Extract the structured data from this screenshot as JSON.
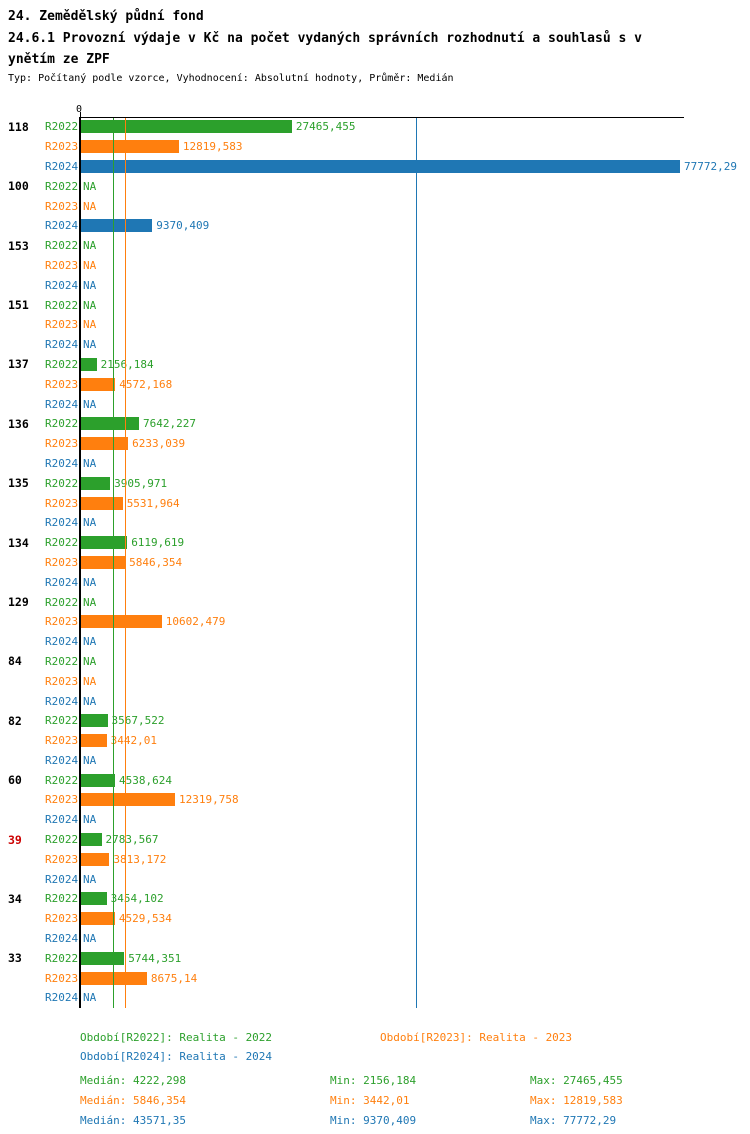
{
  "header": {
    "title": "24. Zemědělský půdní fond",
    "subtitle_lines": [
      "24.6.1 Provozní výdaje v Kč na počet vydaných správních rozhodnutí a souhlasů s v",
      "ynětím ze ZPF"
    ],
    "meta": "Typ: Počítaný podle vzorce, Vyhodnocení: Absolutní hodnoty, Průměr: Medián"
  },
  "colors": {
    "r2022": "#2ca02c",
    "r2023": "#ff7f0e",
    "r2024": "#1f77b4",
    "axis": "#000000",
    "highlight_label": "#cc0000"
  },
  "chart_data": {
    "type": "bar",
    "orientation": "horizontal",
    "axis_zero_label": "0",
    "xlim": [
      0,
      77772.29
    ],
    "series": [
      "R2022",
      "R2023",
      "R2024"
    ],
    "medians": {
      "R2022": 4222.298,
      "R2023": 5846.354,
      "R2024": 43571.35
    },
    "groups": [
      {
        "label": "118",
        "highlight": false,
        "values": [
          "27465,455",
          "12819,583",
          "77772,29"
        ]
      },
      {
        "label": "100",
        "highlight": false,
        "values": [
          "NA",
          "NA",
          "9370,409"
        ]
      },
      {
        "label": "153",
        "highlight": false,
        "values": [
          "NA",
          "NA",
          "NA"
        ]
      },
      {
        "label": "151",
        "highlight": false,
        "values": [
          "NA",
          "NA",
          "NA"
        ]
      },
      {
        "label": "137",
        "highlight": false,
        "values": [
          "2156,184",
          "4572,168",
          "NA"
        ]
      },
      {
        "label": "136",
        "highlight": false,
        "values": [
          "7642,227",
          "6233,039",
          "NA"
        ]
      },
      {
        "label": "135",
        "highlight": false,
        "values": [
          "3905,971",
          "5531,964",
          "NA"
        ]
      },
      {
        "label": "134",
        "highlight": false,
        "values": [
          "6119,619",
          "5846,354",
          "NA"
        ]
      },
      {
        "label": "129",
        "highlight": false,
        "values": [
          "NA",
          "10602,479",
          "NA"
        ]
      },
      {
        "label": "84",
        "highlight": false,
        "values": [
          "NA",
          "NA",
          "NA"
        ]
      },
      {
        "label": "82",
        "highlight": false,
        "values": [
          "3567,522",
          "3442,01",
          "NA"
        ]
      },
      {
        "label": "60",
        "highlight": false,
        "values": [
          "4538,624",
          "12319,758",
          "NA"
        ]
      },
      {
        "label": "39",
        "highlight": true,
        "values": [
          "2783,567",
          "3813,172",
          "NA"
        ]
      },
      {
        "label": "34",
        "highlight": false,
        "values": [
          "3454,102",
          "4529,534",
          "NA"
        ]
      },
      {
        "label": "33",
        "highlight": false,
        "values": [
          "5744,351",
          "8675,14",
          "NA"
        ]
      }
    ]
  },
  "legend": {
    "r2022": "Období[R2022]: Realita - 2022",
    "r2023": "Období[R2023]: Realita - 2023",
    "r2024": "Období[R2024]: Realita - 2024"
  },
  "stats": {
    "rows": [
      {
        "median": "Medián: 4222,298",
        "min": "Min: 2156,184",
        "max": "Max: 27465,455"
      },
      {
        "median": "Medián: 5846,354",
        "min": "Min: 3442,01",
        "max": "Max: 12819,583"
      },
      {
        "median": "Medián: 43571,35",
        "min": "Min: 9370,409",
        "max": "Max: 77772,29"
      }
    ]
  }
}
